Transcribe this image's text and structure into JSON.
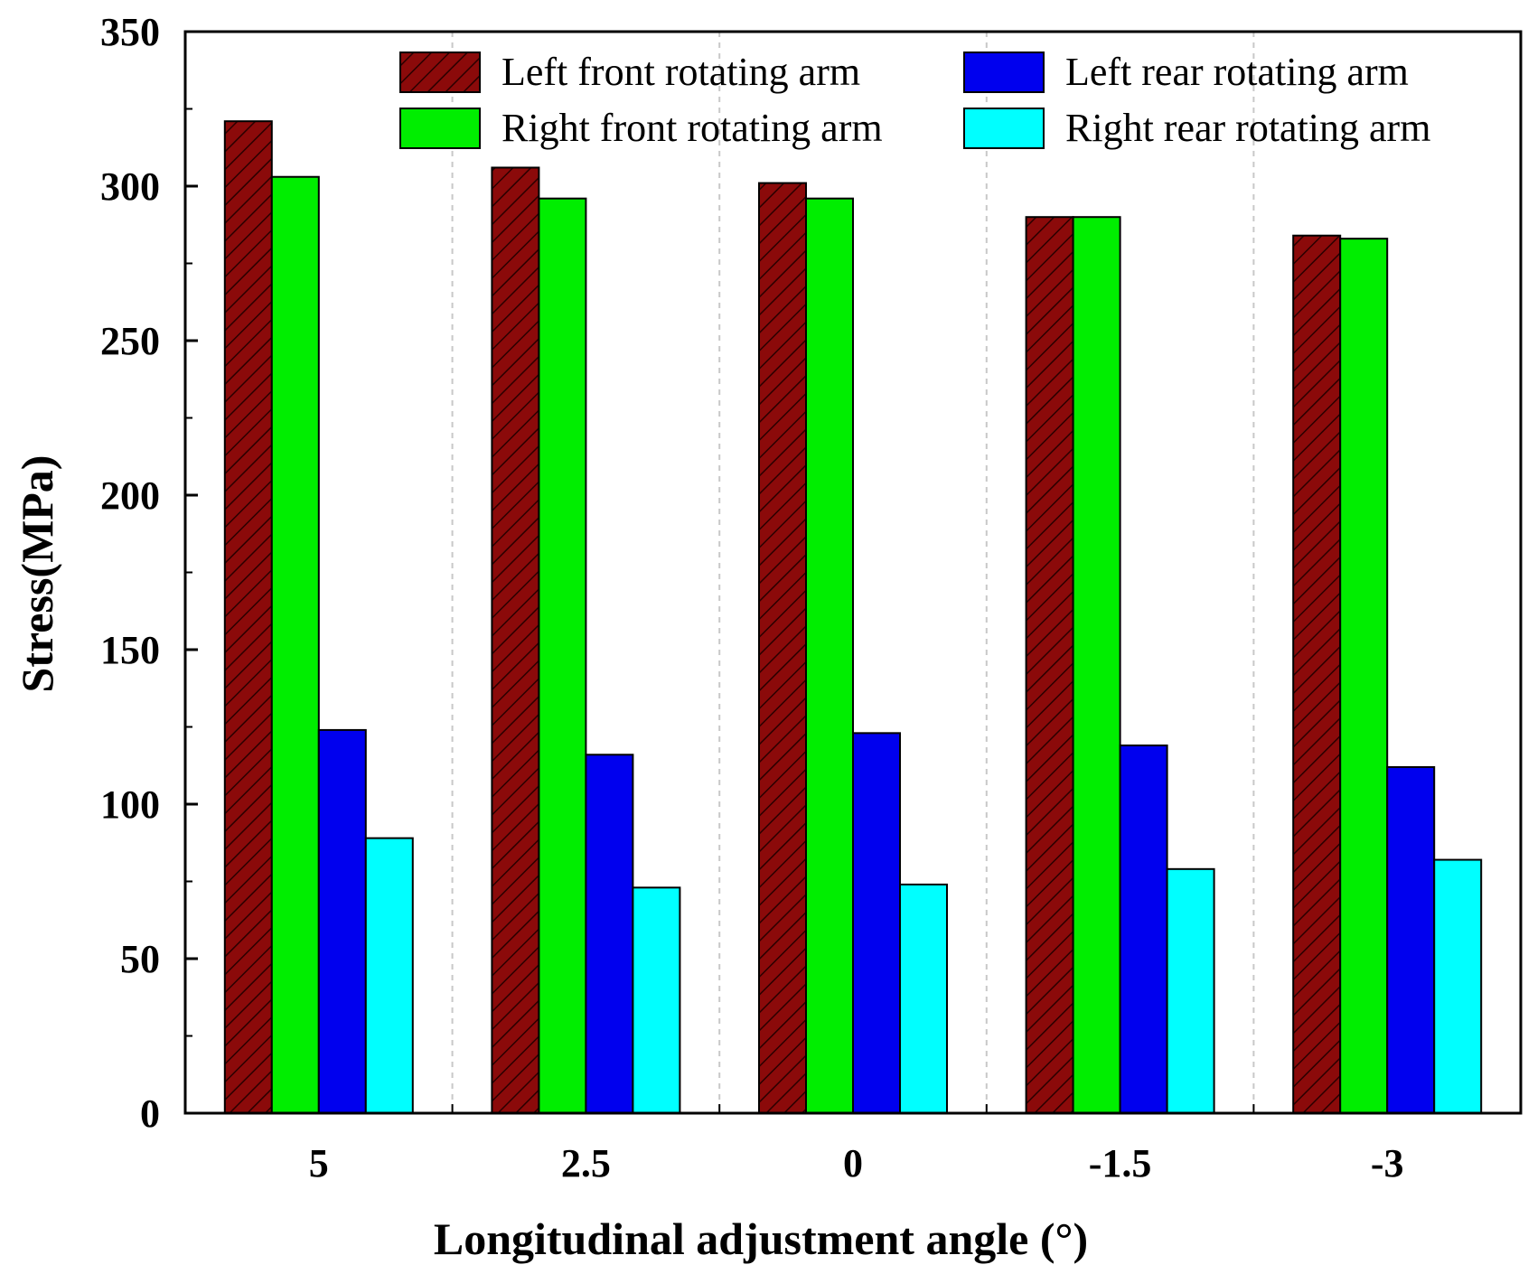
{
  "chart_data": {
    "type": "bar",
    "title": "",
    "xlabel": "Longitudinal adjustment angle (°)",
    "ylabel": "Stress(MPa)",
    "ylim": [
      0,
      350
    ],
    "yticks": [
      0,
      50,
      100,
      150,
      200,
      250,
      300,
      350
    ],
    "categories": [
      "5",
      "2.5",
      "0",
      "-1.5",
      "-3"
    ],
    "grid": "vertical dashed separators between groups",
    "legend_position": "top, two columns",
    "series": [
      {
        "name": "Left front rotating arm",
        "color": "#8b0a0a",
        "pattern": "hatched",
        "values": [
          321,
          306,
          301,
          290,
          284
        ]
      },
      {
        "name": "Right front rotating arm",
        "color": "#00ee00",
        "pattern": "solid",
        "values": [
          303,
          296,
          296,
          290,
          283
        ]
      },
      {
        "name": "Left rear rotating arm",
        "color": "#0000ee",
        "pattern": "solid",
        "values": [
          124,
          116,
          123,
          119,
          112
        ]
      },
      {
        "name": "Right rear rotating arm",
        "color": "#00ffff",
        "pattern": "solid",
        "values": [
          89,
          73,
          74,
          79,
          82
        ]
      }
    ]
  }
}
